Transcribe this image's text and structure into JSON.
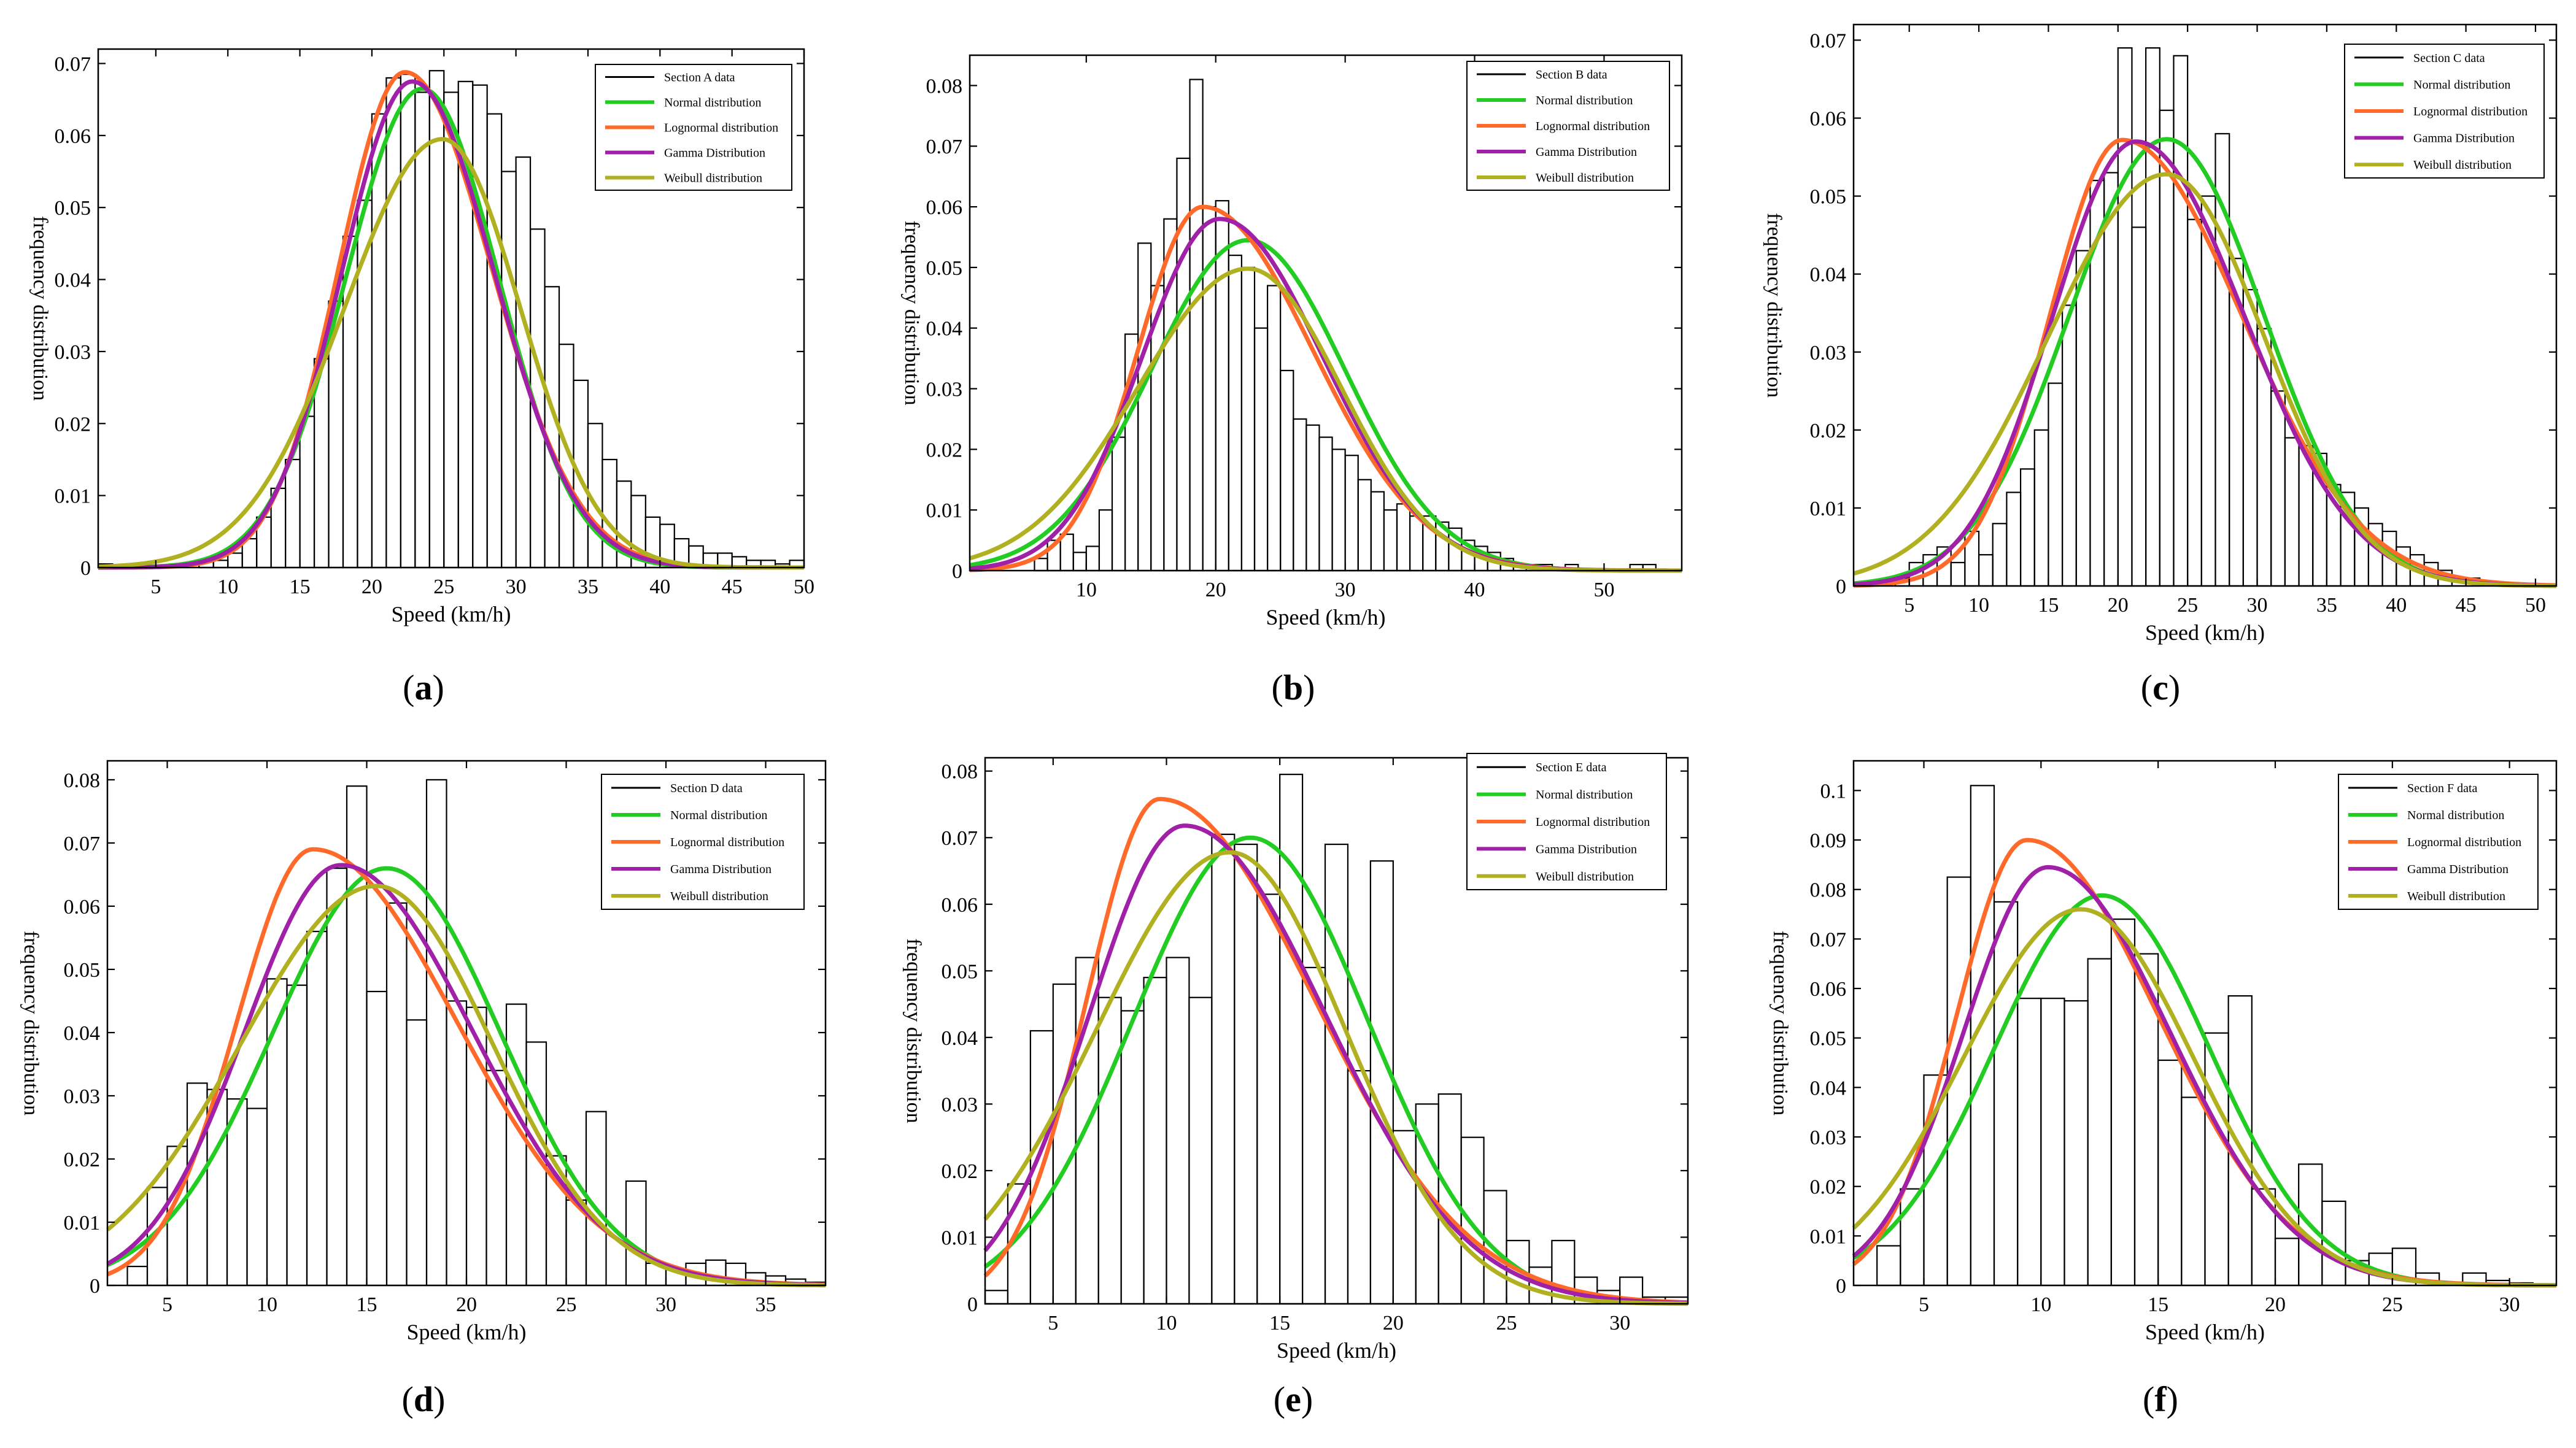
{
  "figure": {
    "ylabel_common": "frequency distribution",
    "xlabel_common": "Speed (km/h)",
    "legend_common": [
      "Normal distribution",
      "Lognormal distribution",
      "Gamma Distribution",
      "Weibull distribution"
    ],
    "colors": {
      "hist": "#000000",
      "normal": "#22cc22",
      "lognormal": "#ff6a2a",
      "gamma": "#a020a8",
      "weibull": "#b0b020"
    }
  },
  "chart_data": [
    {
      "type": "bar",
      "caption": "(a)",
      "title": "",
      "xlabel": "Speed (km/h)",
      "ylabel": "frequency distribution",
      "legend": [
        "Section A data",
        "Normal distribution",
        "Lognormal distribution",
        "Gamma Distribution",
        "Weibull distribution"
      ],
      "xlim": [
        1,
        50
      ],
      "ylim": [
        0,
        0.072
      ],
      "xticks": [
        "5",
        "10",
        "15",
        "20",
        "25",
        "30",
        "35",
        "40",
        "45",
        "50"
      ],
      "yticks": [
        "0",
        "0.01",
        "0.02",
        "0.03",
        "0.04",
        "0.05",
        "0.06",
        "0.07"
      ],
      "bin_start": 1,
      "bin_width": 1,
      "values": [
        0.0005,
        0,
        0,
        0,
        0,
        0,
        0,
        0.001,
        0.001,
        0.002,
        0.004,
        0.007,
        0.011,
        0.015,
        0.021,
        0.029,
        0.037,
        0.046,
        0.051,
        0.063,
        0.068,
        0.0685,
        0.066,
        0.069,
        0.066,
        0.0675,
        0.067,
        0.063,
        0.055,
        0.057,
        0.047,
        0.039,
        0.031,
        0.026,
        0.02,
        0.015,
        0.012,
        0.01,
        0.007,
        0.006,
        0.004,
        0.003,
        0.002,
        0.002,
        0.0015,
        0.001,
        0.001,
        0.0005,
        0.001
      ],
      "fits": [
        {
          "name": "Normal distribution",
          "dist": "normal",
          "peak_x": 23.5,
          "peak_y": 0.0665,
          "left": 5.3,
          "right": 5.3
        },
        {
          "name": "Lognormal distribution",
          "dist": "lognormal",
          "peak_x": 22.3,
          "peak_y": 0.0688,
          "left": 4.6,
          "right": 6.0
        },
        {
          "name": "Gamma Distribution",
          "dist": "gamma",
          "peak_x": 22.8,
          "peak_y": 0.0675,
          "left": 4.9,
          "right": 5.7
        },
        {
          "name": "Weibull distribution",
          "dist": "weibull",
          "peak_x": 24.9,
          "peak_y": 0.0595,
          "left": 6.8,
          "right": 5.4
        }
      ]
    },
    {
      "type": "bar",
      "caption": "(b)",
      "title": "",
      "xlabel": "Speed (km/h)",
      "ylabel": "frequency distribution",
      "legend": [
        "Section B data",
        "Normal distribution",
        "Lognormal distribution",
        "Gamma Distribution",
        "Weibull distribution"
      ],
      "xlim": [
        1,
        56
      ],
      "ylim": [
        0,
        0.085
      ],
      "xticks": [
        "10",
        "20",
        "30",
        "40",
        "50"
      ],
      "yticks": [
        "0",
        "0.01",
        "0.02",
        "0.03",
        "0.04",
        "0.05",
        "0.06",
        "0.07",
        "0.08"
      ],
      "bin_start": 6,
      "bin_width": 1,
      "values": [
        0.002,
        0.005,
        0.006,
        0.003,
        0.004,
        0.01,
        0.022,
        0.039,
        0.054,
        0.047,
        0.058,
        0.068,
        0.081,
        0.06,
        0.061,
        0.052,
        0.05,
        0.04,
        0.047,
        0.033,
        0.025,
        0.024,
        0.022,
        0.02,
        0.019,
        0.015,
        0.013,
        0.01,
        0.011,
        0.009,
        0.009,
        0.008,
        0.007,
        0.005,
        0.004,
        0.003,
        0.002,
        0.001,
        0.001,
        0.001,
        0,
        0.001,
        0,
        0,
        0,
        0,
        0.001,
        0.001
      ],
      "fits": [
        {
          "name": "Normal distribution",
          "dist": "normal",
          "peak_x": 22.5,
          "peak_y": 0.0545,
          "left": 7.5,
          "right": 7.5
        },
        {
          "name": "Lognormal distribution",
          "dist": "lognormal",
          "peak_x": 19.0,
          "peak_y": 0.06,
          "left": 5.0,
          "right": 8.5
        },
        {
          "name": "Gamma Distribution",
          "dist": "gamma",
          "peak_x": 20.3,
          "peak_y": 0.058,
          "left": 6.0,
          "right": 8.0
        },
        {
          "name": "Weibull distribution",
          "dist": "weibull",
          "peak_x": 22.5,
          "peak_y": 0.0498,
          "left": 8.5,
          "right": 7.2
        }
      ]
    },
    {
      "type": "bar",
      "caption": "(c)",
      "title": "",
      "xlabel": "Speed (km/h)",
      "ylabel": "frequency distribution",
      "legend": [
        "Section C data",
        "Normal distribution",
        "Lognormal distribution",
        "Gamma Distribution",
        "Weibull distribution"
      ],
      "xlim": [
        1,
        51.5
      ],
      "ylim": [
        0,
        0.072
      ],
      "xticks": [
        "5",
        "10",
        "15",
        "20",
        "25",
        "30",
        "35",
        "40",
        "45",
        "50"
      ],
      "yticks": [
        "0",
        "0.01",
        "0.02",
        "0.03",
        "0.04",
        "0.05",
        "0.06",
        "0.07"
      ],
      "bin_start": 4,
      "bin_width": 1,
      "values": [
        0.001,
        0.003,
        0.004,
        0.005,
        0.003,
        0.007,
        0.004,
        0.008,
        0.012,
        0.015,
        0.02,
        0.026,
        0.036,
        0.043,
        0.052,
        0.053,
        0.069,
        0.046,
        0.069,
        0.061,
        0.068,
        0.047,
        0.05,
        0.058,
        0.042,
        0.038,
        0.033,
        0.025,
        0.019,
        0.018,
        0.017,
        0.013,
        0.012,
        0.01,
        0.008,
        0.007,
        0.005,
        0.004,
        0.003,
        0.002,
        0.001,
        0.001
      ],
      "fits": [
        {
          "name": "Normal distribution",
          "dist": "normal",
          "peak_x": 23.5,
          "peak_y": 0.0573,
          "left": 7.0,
          "right": 7.0
        },
        {
          "name": "Lognormal distribution",
          "dist": "lognormal",
          "peak_x": 20.3,
          "peak_y": 0.0572,
          "left": 5.2,
          "right": 8.6
        },
        {
          "name": "Gamma Distribution",
          "dist": "gamma",
          "peak_x": 21.3,
          "peak_y": 0.057,
          "left": 6.0,
          "right": 7.8
        },
        {
          "name": "Weibull distribution",
          "dist": "weibull",
          "peak_x": 23.5,
          "peak_y": 0.0528,
          "left": 8.5,
          "right": 7.0
        }
      ]
    },
    {
      "type": "bar",
      "caption": "(d)",
      "title": "",
      "xlabel": "Speed (km/h)",
      "ylabel": "frequency distribution",
      "legend": [
        "Section D data",
        "Normal distribution",
        "Lognormal distribution",
        "Gamma Distribution",
        "Weibull distribution"
      ],
      "xlim": [
        2,
        38
      ],
      "ylim": [
        0,
        0.083
      ],
      "xticks": [
        "5",
        "10",
        "15",
        "20",
        "25",
        "30",
        "35"
      ],
      "yticks": [
        "0",
        "0.01",
        "0.02",
        "0.03",
        "0.04",
        "0.05",
        "0.06",
        "0.07",
        "0.08"
      ],
      "bin_start": 3,
      "bin_width": 1,
      "values": [
        0.003,
        0.0155,
        0.022,
        0.032,
        0.031,
        0.0295,
        0.028,
        0.0485,
        0.0475,
        0.056,
        0.066,
        0.079,
        0.0465,
        0.0605,
        0.042,
        0.08,
        0.045,
        0.044,
        0.034,
        0.0445,
        0.0385,
        0.0205,
        0.0135,
        0.0275,
        0.0,
        0.0165,
        0.0035,
        0.0025,
        0.0035,
        0.004,
        0.0035,
        0.002,
        0.0015,
        0.001,
        0.0005
      ],
      "fits": [
        {
          "name": "Normal distribution",
          "dist": "normal",
          "peak_x": 16.0,
          "peak_y": 0.066,
          "left": 5.7,
          "right": 5.7
        },
        {
          "name": "Lognormal distribution",
          "dist": "lognormal",
          "peak_x": 12.3,
          "peak_y": 0.069,
          "left": 3.8,
          "right": 7.2
        },
        {
          "name": "Gamma Distribution",
          "dist": "gamma",
          "peak_x": 13.7,
          "peak_y": 0.0665,
          "left": 4.8,
          "right": 6.6
        },
        {
          "name": "Weibull distribution",
          "dist": "weibull",
          "peak_x": 15.5,
          "peak_y": 0.0632,
          "left": 6.8,
          "right": 5.8
        }
      ]
    },
    {
      "type": "bar",
      "caption": "(e)",
      "title": "",
      "xlabel": "Speed (km/h)",
      "ylabel": "frequency distribution",
      "legend": [
        "Section E data",
        "Normal distribution",
        "Lognormal distribution",
        "Gamma Distribution",
        "Weibull distribution"
      ],
      "xlim": [
        2,
        33
      ],
      "ylim": [
        0,
        0.082
      ],
      "xticks": [
        "5",
        "10",
        "15",
        "20",
        "25",
        "30"
      ],
      "yticks": [
        "0",
        "0.01",
        "0.02",
        "0.03",
        "0.04",
        "0.05",
        "0.06",
        "0.07",
        "0.08"
      ],
      "bin_start": 2,
      "bin_width": 1,
      "values": [
        0.002,
        0.018,
        0.041,
        0.048,
        0.052,
        0.046,
        0.044,
        0.049,
        0.052,
        0.046,
        0.0705,
        0.069,
        0.0615,
        0.0795,
        0.0505,
        0.069,
        0.035,
        0.0665,
        0.026,
        0.03,
        0.0315,
        0.025,
        0.017,
        0.0095,
        0.0055,
        0.0095,
        0.004,
        0.002,
        0.004,
        0.001,
        0.001
      ],
      "fits": [
        {
          "name": "Normal distribution",
          "dist": "normal",
          "peak_x": 13.7,
          "peak_y": 0.07,
          "left": 5.2,
          "right": 5.2
        },
        {
          "name": "Lognormal distribution",
          "dist": "lognormal",
          "peak_x": 9.7,
          "peak_y": 0.0758,
          "left": 3.2,
          "right": 6.8
        },
        {
          "name": "Gamma Distribution",
          "dist": "gamma",
          "peak_x": 10.8,
          "peak_y": 0.0718,
          "left": 4.2,
          "right": 6.2
        },
        {
          "name": "Weibull distribution",
          "dist": "weibull",
          "peak_x": 12.8,
          "peak_y": 0.0678,
          "left": 5.9,
          "right": 5.1
        }
      ]
    },
    {
      "type": "bar",
      "caption": "(f)",
      "title": "",
      "xlabel": "Speed (km/h)",
      "ylabel": "frequency distribution",
      "legend": [
        "Section F data",
        "Normal distribution",
        "Lognormal distribution",
        "Gamma Distribution",
        "Weibull distribution"
      ],
      "xlim": [
        2,
        32
      ],
      "ylim": [
        0,
        0.106
      ],
      "xticks": [
        "5",
        "10",
        "15",
        "20",
        "25",
        "30"
      ],
      "yticks": [
        "0",
        "0.01",
        "0.02",
        "0.03",
        "0.04",
        "0.05",
        "0.06",
        "0.07",
        "0.08",
        "0.09",
        "0.1"
      ],
      "bin_start": 3,
      "bin_width": 1,
      "values": [
        0.008,
        0.0195,
        0.0425,
        0.0825,
        0.101,
        0.0775,
        0.058,
        0.058,
        0.0575,
        0.066,
        0.074,
        0.067,
        0.0455,
        0.038,
        0.051,
        0.0585,
        0.0195,
        0.0095,
        0.0245,
        0.017,
        0.005,
        0.0065,
        0.0075,
        0.0025,
        0.0005,
        0.0025,
        0.001,
        0.0005
      ],
      "fits": [
        {
          "name": "Normal distribution",
          "dist": "normal",
          "peak_x": 12.6,
          "peak_y": 0.0788,
          "left": 4.6,
          "right": 4.6
        },
        {
          "name": "Lognormal distribution",
          "dist": "lognormal",
          "peak_x": 9.4,
          "peak_y": 0.09,
          "left": 3.0,
          "right": 5.6
        },
        {
          "name": "Gamma Distribution",
          "dist": "gamma",
          "peak_x": 10.3,
          "peak_y": 0.0845,
          "left": 3.6,
          "right": 5.2
        },
        {
          "name": "Weibull distribution",
          "dist": "weibull",
          "peak_x": 11.7,
          "peak_y": 0.076,
          "left": 5.0,
          "right": 4.8
        }
      ]
    }
  ]
}
